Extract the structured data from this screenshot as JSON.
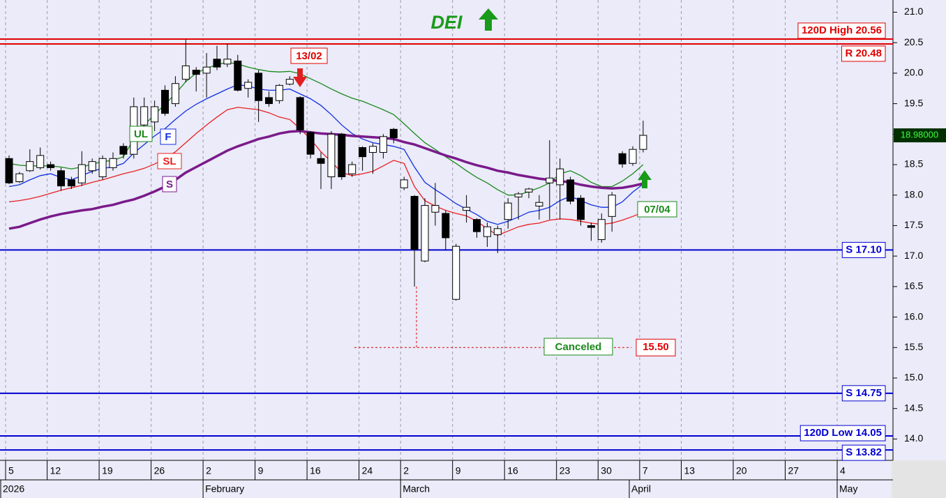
{
  "chart_data": {
    "type": "candlestick",
    "title": "DEI",
    "categories": [
      "5",
      null,
      null,
      null,
      "12",
      null,
      null,
      null,
      null,
      "19",
      null,
      null,
      null,
      null,
      "26",
      null,
      null,
      null,
      null,
      "2",
      null,
      null,
      null,
      null,
      "9",
      null,
      null,
      null,
      null,
      "16",
      null,
      null,
      null,
      null,
      "24",
      null,
      null,
      null,
      "2",
      null,
      null,
      null,
      null,
      "9",
      null,
      null,
      null,
      null,
      "16",
      null,
      null,
      null,
      null,
      "23",
      null,
      null,
      null,
      "30",
      null,
      null,
      null,
      "7",
      null,
      null,
      null,
      "13",
      null,
      null,
      null,
      null,
      "20",
      null,
      null,
      null,
      null,
      "27",
      null,
      null,
      null,
      null,
      "4",
      null,
      null,
      null
    ],
    "months": [
      "2026",
      null,
      null,
      null,
      null,
      null,
      null,
      null,
      null,
      null,
      null,
      null,
      null,
      null,
      null,
      null,
      null,
      null,
      null,
      "February",
      null,
      null,
      null,
      null,
      null,
      null,
      null,
      null,
      null,
      null,
      null,
      null,
      null,
      null,
      null,
      null,
      null,
      null,
      "March",
      null,
      null,
      null,
      null,
      null,
      null,
      null,
      null,
      null,
      null,
      null,
      null,
      null,
      null,
      null,
      null,
      null,
      null,
      null,
      null,
      null,
      "April",
      null,
      null,
      null,
      null,
      null,
      null,
      null,
      null,
      null,
      null,
      null,
      null,
      null,
      null,
      null,
      null,
      null,
      null,
      null,
      "May",
      null,
      null,
      null
    ],
    "open": [
      18.6,
      18.22,
      18.4,
      18.45,
      18.5,
      18.4,
      18.25,
      18.2,
      18.4,
      18.3,
      18.45,
      18.8,
      18.67,
      19.15,
      19.2,
      19.72,
      19.5,
      19.9,
      20.05,
      20.0,
      20.23,
      20.15,
      20.2,
      19.75,
      20.0,
      19.6,
      19.55,
      19.82,
      19.6,
      19.03,
      18.6,
      18.3,
      19.0,
      18.35,
      18.78,
      18.7,
      18.7,
      19.08,
      18.12,
      17.98,
      16.92,
      17.72,
      17.7,
      16.29,
      17.75,
      17.6,
      17.32,
      17.35,
      17.6,
      17.97,
      18.05,
      17.82,
      18.2,
      18.17,
      18.25,
      17.95,
      17.5,
      17.27,
      17.65,
      18.68,
      18.52,
      18.75,
      null,
      null,
      null,
      null,
      null,
      null,
      null,
      null,
      null,
      null,
      null,
      null,
      null,
      null,
      null,
      null,
      null,
      null,
      null,
      null,
      null,
      null
    ],
    "high": [
      18.65,
      18.38,
      18.75,
      18.78,
      18.55,
      18.45,
      18.3,
      18.72,
      18.6,
      18.65,
      18.7,
      18.85,
      19.6,
      19.6,
      19.55,
      19.8,
      19.95,
      20.55,
      20.1,
      20.33,
      20.45,
      20.48,
      20.3,
      19.9,
      20.05,
      19.7,
      19.82,
      19.95,
      19.62,
      19.05,
      18.7,
      19.05,
      19.02,
      18.55,
      18.8,
      18.85,
      19.0,
      19.1,
      18.3,
      18.0,
      17.95,
      18.2,
      17.75,
      17.2,
      18.0,
      17.62,
      17.55,
      17.5,
      17.95,
      18.05,
      18.12,
      18.0,
      18.9,
      18.6,
      18.3,
      18.0,
      17.55,
      17.7,
      18.05,
      18.72,
      18.8,
      19.22,
      null,
      null,
      null,
      null,
      null,
      null,
      null,
      null,
      null,
      null,
      null,
      null,
      null,
      null,
      null,
      null,
      null,
      null,
      null,
      null,
      null,
      null
    ],
    "low": [
      18.18,
      18.2,
      18.38,
      18.42,
      18.4,
      18.07,
      18.1,
      18.15,
      18.35,
      18.25,
      18.4,
      18.6,
      18.6,
      19.1,
      19.05,
      19.3,
      19.45,
      19.85,
      19.7,
      19.6,
      20.05,
      20.1,
      19.7,
      19.6,
      19.2,
      19.45,
      19.5,
      19.8,
      19.0,
      18.6,
      18.1,
      18.1,
      18.25,
      18.3,
      18.4,
      18.35,
      18.6,
      18.85,
      18.08,
      16.5,
      16.9,
      17.5,
      17.1,
      16.27,
      17.55,
      17.3,
      17.15,
      17.05,
      17.45,
      17.6,
      17.95,
      17.6,
      17.6,
      17.6,
      17.85,
      17.5,
      17.25,
      17.22,
      17.4,
      18.45,
      18.48,
      18.7,
      null,
      null,
      null,
      null,
      null,
      null,
      null,
      null,
      null,
      null,
      null,
      null,
      null,
      null,
      null,
      null,
      null,
      null,
      null,
      null,
      null,
      null
    ],
    "close": [
      18.2,
      18.35,
      18.55,
      18.65,
      18.45,
      18.15,
      18.15,
      18.5,
      18.55,
      18.6,
      18.6,
      18.67,
      19.45,
      19.45,
      19.45,
      19.34,
      19.83,
      20.12,
      19.98,
      20.1,
      20.1,
      20.23,
      19.72,
      19.85,
      19.55,
      19.5,
      19.8,
      19.9,
      19.07,
      18.67,
      18.52,
      19.0,
      18.3,
      18.5,
      18.63,
      18.8,
      18.96,
      18.94,
      18.25,
      17.11,
      17.83,
      17.83,
      17.3,
      17.16,
      17.8,
      17.4,
      17.48,
      17.45,
      17.87,
      18.02,
      18.1,
      17.88,
      18.28,
      18.43,
      17.9,
      17.6,
      17.47,
      17.6,
      18.0,
      18.51,
      18.75,
      18.98,
      null,
      null,
      null,
      null,
      null,
      null,
      null,
      null,
      null,
      null,
      null,
      null,
      null,
      null,
      null,
      null,
      null,
      null,
      null,
      null,
      null,
      null
    ],
    "series": [
      {
        "name": "UL",
        "color": "#1a8a1a",
        "values": [
          18.52,
          18.49,
          18.48,
          18.48,
          18.48,
          18.46,
          18.43,
          18.46,
          18.51,
          18.55,
          18.57,
          18.63,
          18.92,
          19.15,
          19.32,
          19.49,
          19.66,
          19.86,
          20.0,
          20.08,
          20.14,
          20.18,
          20.15,
          20.1,
          20.06,
          20.03,
          20.02,
          20.03,
          19.99,
          19.91,
          19.83,
          19.74,
          19.66,
          19.59,
          19.54,
          19.47,
          19.4,
          19.32,
          19.17,
          19.01,
          18.86,
          18.75,
          18.63,
          18.52,
          18.4,
          18.29,
          18.2,
          18.09,
          18.0,
          18.0,
          18.06,
          18.12,
          18.2,
          18.35,
          18.4,
          18.32,
          18.21,
          18.14,
          18.14,
          18.23,
          18.35,
          18.5,
          null,
          null,
          null,
          null,
          null,
          null,
          null,
          null,
          null,
          null,
          null,
          null,
          null,
          null,
          null,
          null,
          null,
          null,
          null,
          null,
          null,
          null
        ]
      },
      {
        "name": "F",
        "color": "#1030e0",
        "values": [
          18.14,
          18.17,
          18.25,
          18.32,
          18.35,
          18.29,
          18.25,
          18.32,
          18.39,
          18.44,
          18.46,
          18.52,
          18.69,
          18.83,
          18.97,
          19.09,
          19.24,
          19.38,
          19.49,
          19.58,
          19.66,
          19.74,
          19.81,
          19.79,
          19.74,
          19.72,
          19.72,
          19.74,
          19.66,
          19.58,
          19.47,
          19.32,
          19.15,
          19.01,
          18.92,
          18.86,
          18.83,
          18.8,
          18.75,
          18.46,
          18.21,
          18.09,
          17.98,
          17.86,
          17.77,
          17.68,
          17.57,
          17.52,
          17.57,
          17.64,
          17.72,
          17.75,
          17.8,
          17.91,
          17.98,
          17.91,
          17.84,
          17.8,
          17.8,
          17.89,
          18.05,
          18.18,
          null,
          null,
          null,
          null,
          null,
          null,
          null,
          null,
          null,
          null,
          null,
          null,
          null,
          null,
          null,
          null,
          null,
          null,
          null,
          null,
          null,
          null
        ]
      },
      {
        "name": "SL",
        "color": "#e82020",
        "values": [
          17.89,
          17.91,
          17.94,
          17.98,
          18.03,
          18.08,
          18.12,
          18.16,
          18.21,
          18.25,
          18.3,
          18.35,
          18.39,
          18.44,
          18.51,
          18.6,
          18.71,
          18.86,
          19.01,
          19.15,
          19.28,
          19.4,
          19.44,
          19.42,
          19.4,
          19.35,
          19.28,
          19.24,
          19.09,
          18.92,
          18.71,
          18.55,
          18.37,
          18.32,
          18.35,
          18.39,
          18.48,
          18.57,
          18.52,
          18.14,
          17.91,
          17.82,
          17.75,
          17.7,
          17.66,
          17.57,
          17.45,
          17.34,
          17.41,
          17.48,
          17.52,
          17.54,
          17.59,
          17.61,
          17.6,
          17.57,
          17.54,
          17.52,
          17.54,
          17.59,
          17.65,
          17.72,
          null,
          null,
          null,
          null,
          null,
          null,
          null,
          null,
          null,
          null,
          null,
          null,
          null,
          null,
          null,
          null,
          null,
          null,
          null,
          null,
          null,
          null
        ]
      },
      {
        "name": "S",
        "color": "#7a1a8a",
        "values": [
          17.45,
          17.48,
          17.54,
          17.6,
          17.65,
          17.69,
          17.72,
          17.75,
          17.77,
          17.81,
          17.84,
          17.89,
          17.93,
          17.99,
          18.06,
          18.14,
          18.25,
          18.37,
          18.46,
          18.55,
          18.64,
          18.73,
          18.8,
          18.86,
          18.92,
          18.96,
          19.01,
          19.04,
          19.05,
          19.03,
          19.01,
          19.0,
          18.99,
          18.97,
          18.96,
          18.95,
          18.94,
          18.92,
          18.87,
          18.83,
          18.77,
          18.71,
          18.65,
          18.6,
          18.54,
          18.49,
          18.45,
          18.4,
          18.37,
          18.33,
          18.3,
          18.27,
          18.25,
          18.23,
          18.21,
          18.17,
          18.14,
          18.12,
          18.11,
          18.12,
          18.15,
          18.19,
          null,
          null,
          null,
          null,
          null,
          null,
          null,
          null,
          null,
          null,
          null,
          null,
          null,
          null,
          null,
          null,
          null,
          null,
          null,
          null,
          null,
          null
        ]
      }
    ],
    "levels": [
      {
        "label": "120D High 20.56",
        "value": 20.56,
        "color": "#e00000"
      },
      {
        "label": "R 20.48",
        "value": 20.48,
        "color": "#e00000"
      },
      {
        "label": "S 17.10",
        "value": 17.1,
        "color": "#0000d0"
      },
      {
        "label": "S 14.75",
        "value": 14.75,
        "color": "#0000d0"
      },
      {
        "label": "120D Low 14.05",
        "value": 14.05,
        "color": "#0000d0"
      },
      {
        "label": "S 13.82",
        "value": 13.82,
        "color": "#0000d0"
      }
    ],
    "stop": {
      "label": "15.50",
      "value": 15.5,
      "status": "Canceled"
    },
    "last_price": {
      "value": 18.98,
      "label": "18.98000"
    },
    "signals": [
      "13/02",
      "07/04"
    ],
    "ylim": [
      13.65,
      21.2
    ],
    "yticks": [
      {
        "value": 14,
        "label": "14.0"
      },
      14.5,
      {
        "value": 15,
        "label": "15.0"
      },
      15.5,
      {
        "value": 16,
        "label": "16.0"
      },
      16.5,
      {
        "value": 17,
        "label": "17.0"
      },
      17.5,
      {
        "value": 18,
        "label": "18.0"
      },
      18.5,
      {
        "value": 19,
        "label": "19.0"
      },
      19.5,
      {
        "value": 20,
        "label": "20.0"
      },
      20.5,
      {
        "value": 21,
        "label": "21.0"
      }
    ],
    "grid": true,
    "up_color": "#ffffff",
    "down_color": "#000000"
  }
}
